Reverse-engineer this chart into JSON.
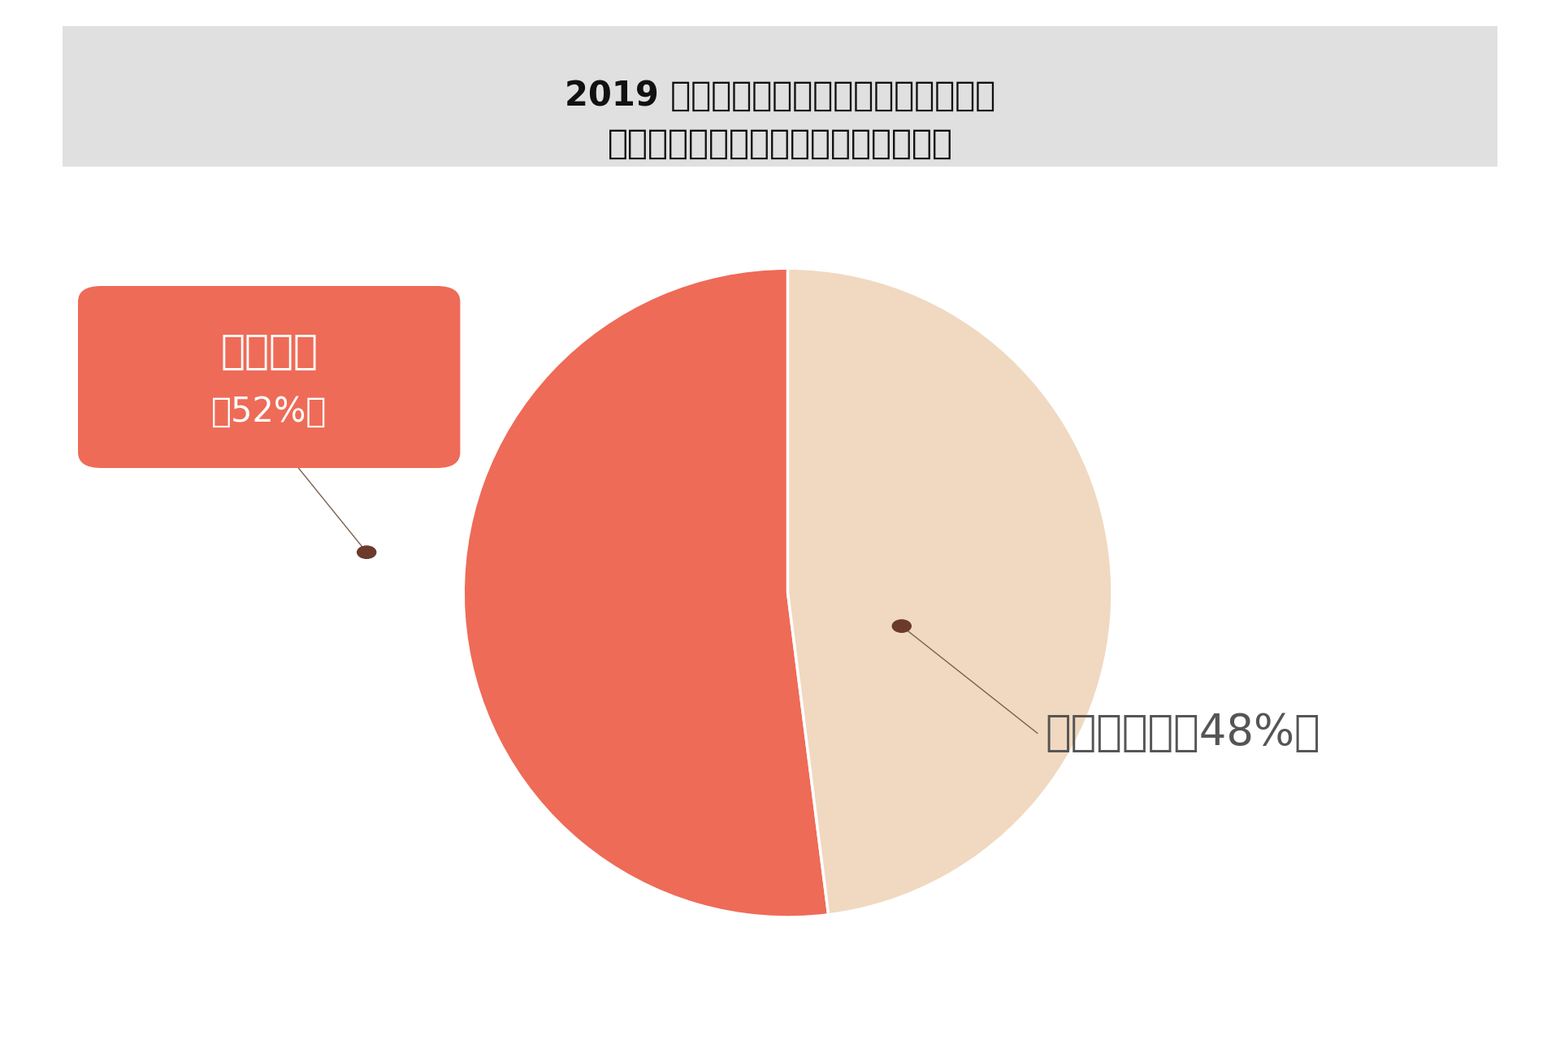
{
  "title_line1": "2019 年以前（マスク生活以前）と比べ、",
  "title_line2": "化粧下地の選び方は変わりましたか。",
  "slices": [
    52,
    48
  ],
  "labels": [
    "変わった",
    "変わらない"
  ],
  "percentages": [
    "52%",
    "48%"
  ],
  "slice_colors": [
    "#EE6B57",
    "#F0D9C0"
  ],
  "background_color": "#FFFFFF",
  "title_bg_color": "#E0E0E0",
  "label_box_color": "#EE6B57",
  "label_text_color_box": "#FFFFFF",
  "label_text_color_plain": "#555555",
  "dot_color": "#6B3A2A",
  "line_color": "#7a6050",
  "title_fontsize": 30,
  "label_fontsize": 36,
  "pct_fontsize": 30,
  "plain_label_fontsize": 38
}
